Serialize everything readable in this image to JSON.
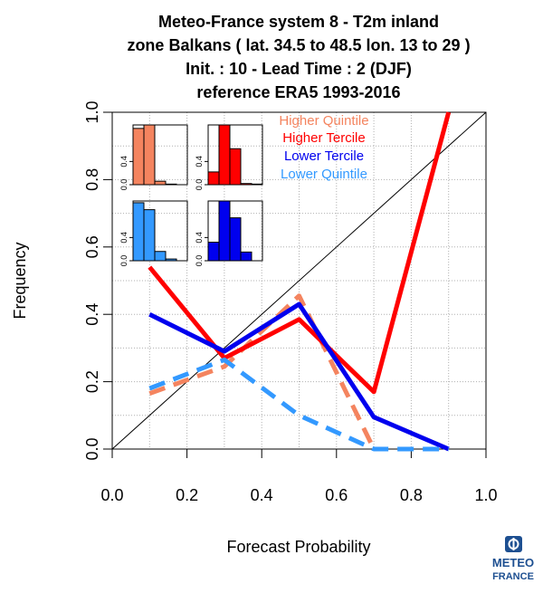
{
  "header": {
    "title_lines": [
      "Meteo-France system 8  -  T2m inland",
      "zone Balkans ( lat. 34.5 to 48.5    lon. 13 to 29 )",
      "Init. : 10  - Lead Time : 2 (DJF)",
      "reference ERA5 1993-2016"
    ]
  },
  "logo": {
    "line1": "METEO",
    "line2": "FRANCE",
    "color": "#1d4f91"
  },
  "chart_data": {
    "type": "line",
    "xlabel": "Forecast Probability",
    "ylabel": "Frequency",
    "xlim": [
      0,
      1
    ],
    "ylim": [
      0,
      1
    ],
    "x_ticks": [
      "0.0",
      "0.2",
      "0.4",
      "0.6",
      "0.8",
      "1.0"
    ],
    "y_ticks": [
      "0.0",
      "0.2",
      "0.4",
      "0.6",
      "0.8",
      "1.0"
    ],
    "grid": true,
    "diagonal": true,
    "legend_position": "top-right",
    "series": [
      {
        "name": "Higher Quintile",
        "color": "#f4845f",
        "dashed": true,
        "x": [
          0.1,
          0.3,
          0.5,
          0.7
        ],
        "y": [
          0.165,
          0.245,
          0.455,
          0.0
        ]
      },
      {
        "name": "Higher Tercile",
        "color": "#ff0000",
        "dashed": false,
        "x": [
          0.1,
          0.3,
          0.5,
          0.7,
          0.9
        ],
        "y": [
          0.54,
          0.27,
          0.385,
          0.17,
          1.0
        ]
      },
      {
        "name": "Lower Tercile",
        "color": "#0000ee",
        "dashed": false,
        "x": [
          0.1,
          0.3,
          0.5,
          0.7,
          0.9
        ],
        "y": [
          0.4,
          0.29,
          0.43,
          0.095,
          0.0
        ]
      },
      {
        "name": "Lower Quintile",
        "color": "#3399ff",
        "dashed": true,
        "x": [
          0.1,
          0.3,
          0.5,
          0.7,
          0.9
        ],
        "y": [
          0.18,
          0.265,
          0.1,
          0.0,
          0.0
        ]
      }
    ],
    "insets": [
      {
        "series": "Higher Quintile",
        "color": "#f4845f",
        "yticks": [
          "0.0",
          "0.4"
        ],
        "values": [
          0.97,
          1.03,
          0.06,
          0.01,
          0.0
        ]
      },
      {
        "series": "Higher Tercile",
        "color": "#ff0000",
        "yticks": [
          "0.0",
          "0.4"
        ],
        "values": [
          0.22,
          1.03,
          0.62,
          0.02,
          0.01
        ]
      },
      {
        "series": "Lower Quintile",
        "color": "#3399ff",
        "yticks": [
          "0.0",
          "0.4"
        ],
        "values": [
          1.0,
          0.88,
          0.16,
          0.03,
          0.0
        ]
      },
      {
        "series": "Lower Tercile",
        "color": "#0000ee",
        "yticks": [
          "0.0",
          "0.4"
        ],
        "values": [
          0.32,
          1.03,
          0.74,
          0.15,
          0.0
        ]
      }
    ]
  }
}
